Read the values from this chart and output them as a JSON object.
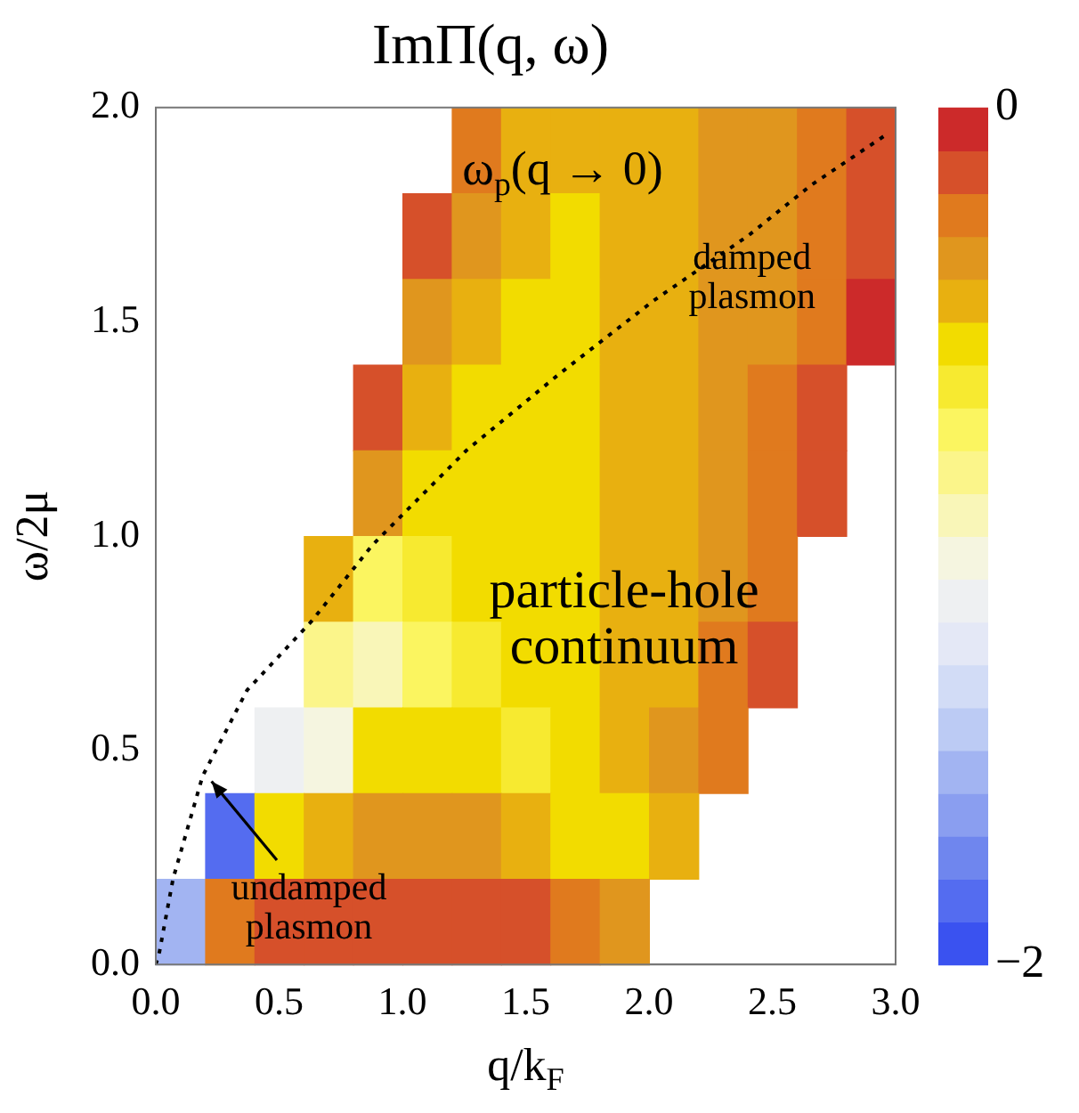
{
  "chart_data": {
    "type": "heatmap",
    "title": "ImΠ(q, ω)",
    "xlabel": "q/k$_{F}$",
    "ylabel": "ω/2μ",
    "x": [
      0.1,
      0.3,
      0.5,
      0.7,
      0.9,
      1.1,
      1.3,
      1.5,
      1.7,
      1.9,
      2.1,
      2.3,
      2.5,
      2.7,
      2.9
    ],
    "y": [
      1.9,
      1.7,
      1.5,
      1.3,
      1.1,
      0.9,
      0.7,
      0.5,
      0.3,
      0.1
    ],
    "xlim": [
      0,
      3
    ],
    "ylim": [
      0,
      2
    ],
    "xticks": [
      {
        "value": 0,
        "label": "0.0"
      },
      {
        "value": 0.5,
        "label": "0.5"
      },
      {
        "value": 1,
        "label": "1.0"
      },
      {
        "value": 1.5,
        "label": "1.5"
      },
      {
        "value": 2,
        "label": "2.0"
      },
      {
        "value": 2.5,
        "label": "2.5"
      },
      {
        "value": 3,
        "label": "3.0"
      }
    ],
    "yticks": [
      {
        "value": 0,
        "label": "0.0"
      },
      {
        "value": 0.5,
        "label": "0.5"
      },
      {
        "value": 1,
        "label": "1.0"
      },
      {
        "value": 1.5,
        "label": "1.5"
      },
      {
        "value": 2,
        "label": "2.0"
      }
    ],
    "cells": [
      [
        null,
        null,
        null,
        null,
        null,
        null,
        -0.3,
        -0.45,
        -0.5,
        -0.5,
        -0.45,
        -0.4,
        -0.35,
        -0.3,
        -0.2
      ],
      [
        null,
        null,
        null,
        null,
        null,
        -0.2,
        -0.4,
        -0.5,
        -0.55,
        -0.5,
        -0.45,
        -0.4,
        -0.35,
        -0.3,
        -0.2
      ],
      [
        null,
        null,
        null,
        null,
        null,
        -0.35,
        -0.5,
        -0.55,
        -0.55,
        -0.5,
        -0.45,
        -0.4,
        -0.35,
        -0.25,
        -0.1
      ],
      [
        null,
        null,
        null,
        null,
        -0.2,
        -0.45,
        -0.55,
        -0.6,
        -0.55,
        -0.5,
        -0.45,
        -0.4,
        -0.3,
        -0.2,
        null
      ],
      [
        null,
        null,
        null,
        null,
        -0.4,
        -0.55,
        -0.6,
        -0.6,
        -0.55,
        -0.5,
        -0.45,
        -0.35,
        -0.3,
        -0.15,
        null
      ],
      [
        null,
        null,
        null,
        -0.5,
        -0.75,
        -0.65,
        -0.6,
        -0.6,
        -0.55,
        -0.5,
        -0.45,
        -0.35,
        -0.25,
        null,
        null
      ],
      [
        null,
        null,
        null,
        -0.9,
        -0.95,
        -0.8,
        -0.7,
        -0.6,
        -0.55,
        -0.5,
        -0.45,
        -0.3,
        -0.15,
        null,
        null
      ],
      [
        null,
        null,
        -1.2,
        -1.1,
        -0.6,
        -0.55,
        -0.6,
        -0.65,
        -0.55,
        -0.5,
        -0.4,
        -0.25,
        null,
        null,
        null
      ],
      [
        null,
        -1.9,
        -0.55,
        -0.45,
        -0.4,
        -0.4,
        -0.4,
        -0.45,
        -0.55,
        -0.6,
        -0.45,
        null,
        null,
        null,
        null
      ],
      [
        -1.6,
        -0.3,
        -0.2,
        -0.15,
        -0.15,
        -0.15,
        -0.15,
        -0.2,
        -0.25,
        -0.4,
        null,
        null,
        null,
        null,
        null
      ]
    ],
    "clim": [
      -2,
      0
    ],
    "cticks": [
      {
        "value": -2,
        "label": "−2"
      },
      0
    ],
    "series": [
      {
        "type": "line",
        "color": "#000000",
        "line_style": "dotted",
        "x": [
          0,
          0.015,
          0.07,
          0.19,
          0.37,
          0.63,
          0.88,
          1.26,
          1.64,
          2.02,
          2.4,
          2.66,
          2.97
        ],
        "values": [
          0,
          0.03,
          0.2,
          0.44,
          0.64,
          0.8,
          0.98,
          1.2,
          1.38,
          1.55,
          1.7,
          1.82,
          1.94
        ]
      }
    ],
    "annotations": [
      "ω$_{p}$(q → 0)",
      "damped\nplasmon",
      "particle-hole\ncontinuum",
      "undamped\nplasmon"
    ],
    "grid": false,
    "legend": false
  }
}
